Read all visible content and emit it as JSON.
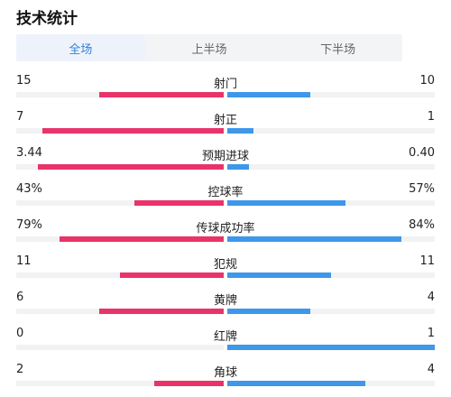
{
  "title": "技术统计",
  "tabs": [
    {
      "label": "全场",
      "active": true
    },
    {
      "label": "上半场",
      "active": false
    },
    {
      "label": "下半场",
      "active": false
    }
  ],
  "colors": {
    "home": "#e8346a",
    "away": "#3f97ea",
    "track": "#f1f2f4",
    "tab_active": "#2f7fe0"
  },
  "stats": [
    {
      "name": "射门",
      "left": "15",
      "right": "10",
      "left_share": 0.6,
      "right_share": 0.4
    },
    {
      "name": "射正",
      "left": "7",
      "right": "1",
      "left_share": 0.875,
      "right_share": 0.125
    },
    {
      "name": "预期进球",
      "left": "3.44",
      "right": "0.40",
      "left_share": 0.896,
      "right_share": 0.104
    },
    {
      "name": "控球率",
      "left": "43%",
      "right": "57%",
      "left_share": 0.43,
      "right_share": 0.57
    },
    {
      "name": "传球成功率",
      "left": "79%",
      "right": "84%",
      "left_share": 0.79,
      "right_share": 0.84
    },
    {
      "name": "犯规",
      "left": "11",
      "right": "11",
      "left_share": 0.5,
      "right_share": 0.5
    },
    {
      "name": "黄牌",
      "left": "6",
      "right": "4",
      "left_share": 0.6,
      "right_share": 0.4
    },
    {
      "name": "红牌",
      "left": "0",
      "right": "1",
      "left_share": 0.0,
      "right_share": 1.0
    },
    {
      "name": "角球",
      "left": "2",
      "right": "4",
      "left_share": 0.333,
      "right_share": 0.667
    }
  ]
}
